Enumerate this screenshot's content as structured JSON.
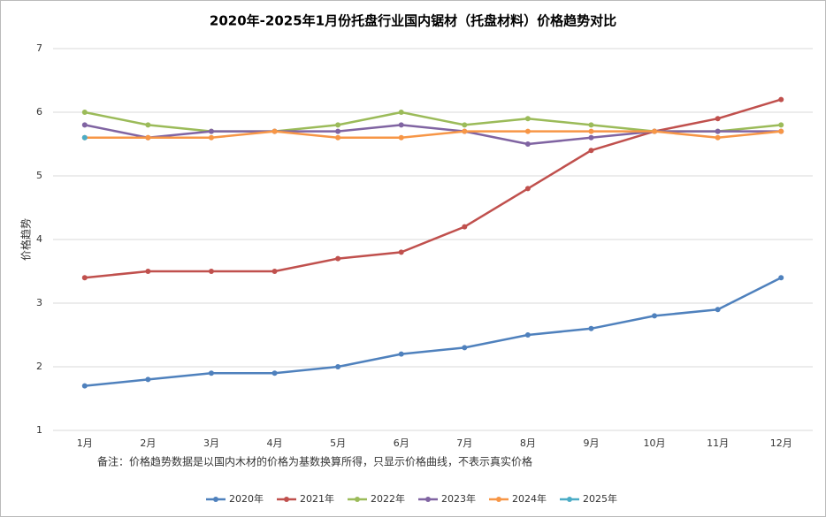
{
  "chart_data": {
    "type": "line",
    "title": "2020年-2025年1月份托盘行业国内锯材（托盘材料）价格趋势对比",
    "y_label": "价格趋势",
    "annotation": "备注：价格趋势数据是以国内木材的价格为基数换算所得，只显示价格曲线，不表示真实价格",
    "categories": [
      "1月",
      "2月",
      "3月",
      "4月",
      "5月",
      "6月",
      "7月",
      "8月",
      "9月",
      "10月",
      "11月",
      "12月"
    ],
    "series": [
      {
        "name": "2020年",
        "color": "#4f81bd",
        "values": [
          1.7,
          1.8,
          1.9,
          1.9,
          2.0,
          2.2,
          2.3,
          2.5,
          2.6,
          2.8,
          2.9,
          3.4
        ]
      },
      {
        "name": "2021年",
        "color": "#c0504d",
        "values": [
          3.4,
          3.5,
          3.5,
          3.5,
          3.7,
          3.8,
          4.2,
          4.8,
          5.4,
          5.7,
          5.9,
          6.2
        ]
      },
      {
        "name": "2022年",
        "color": "#9bbb59",
        "values": [
          6.0,
          5.8,
          5.7,
          5.7,
          5.8,
          6.0,
          5.8,
          5.9,
          5.8,
          5.7,
          5.7,
          5.8
        ]
      },
      {
        "name": "2023年",
        "color": "#8064a2",
        "values": [
          5.8,
          5.6,
          5.7,
          5.7,
          5.7,
          5.8,
          5.7,
          5.5,
          5.6,
          5.7,
          5.7,
          5.7
        ]
      },
      {
        "name": "2024年",
        "color": "#f79646",
        "values": [
          5.6,
          5.6,
          5.6,
          5.7,
          5.6,
          5.6,
          5.7,
          5.7,
          5.7,
          5.7,
          5.6,
          5.7
        ]
      },
      {
        "name": "2025年",
        "color": "#4bacc6",
        "values": [
          5.6,
          null,
          null,
          null,
          null,
          null,
          null,
          null,
          null,
          null,
          null,
          null
        ]
      }
    ],
    "ylim": [
      1,
      7
    ],
    "yticks": [
      1,
      2,
      3,
      4,
      5,
      6,
      7
    ],
    "grid": true,
    "legend": "bottom"
  }
}
